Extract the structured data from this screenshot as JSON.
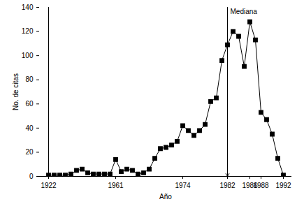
{
  "chart_data": {
    "type": "line",
    "x_label": "Año",
    "y_label": "No. de citas",
    "categories": [
      "1922",
      null,
      null,
      null,
      null,
      null,
      null,
      null,
      null,
      null,
      null,
      null,
      "1961",
      null,
      null,
      null,
      null,
      null,
      null,
      null,
      null,
      null,
      null,
      null,
      "1974",
      null,
      null,
      null,
      null,
      null,
      null,
      null,
      "1982",
      null,
      null,
      null,
      "1986",
      null,
      "1988",
      null,
      null,
      null,
      "1992"
    ],
    "values": [
      1,
      1,
      1,
      1,
      2,
      5,
      6,
      3,
      2,
      2,
      2,
      2,
      14,
      4,
      6,
      5,
      2,
      3,
      6,
      15,
      23,
      24,
      26,
      29,
      42,
      38,
      34,
      38,
      43,
      62,
      65,
      96,
      109,
      120,
      116,
      91,
      128,
      113,
      53,
      47,
      35,
      15,
      1
    ],
    "color": "#000000",
    "marker": "square",
    "line_style": "solid",
    "ylim": [
      0,
      140
    ],
    "yticks": [
      0,
      20,
      40,
      60,
      80,
      100,
      120,
      140
    ],
    "grid": false,
    "annotations": [
      {
        "text": "Mediana",
        "x": "1982"
      }
    ]
  }
}
